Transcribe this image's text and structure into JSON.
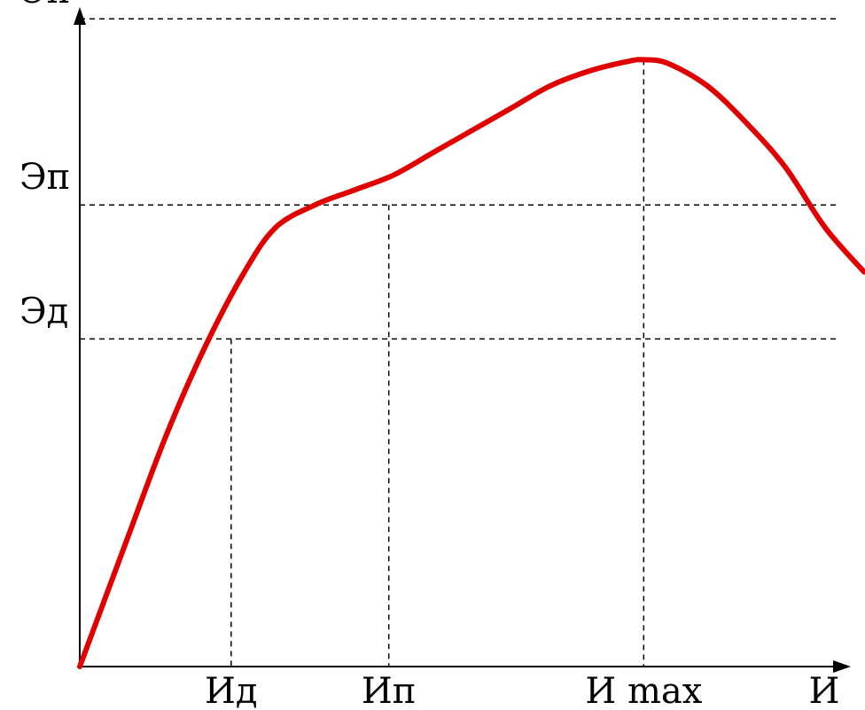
{
  "chart_data": {
    "type": "line",
    "xlabel": "И",
    "ylabel": "",
    "y_levels": [
      {
        "label": "Эн",
        "value": 0.87
      },
      {
        "label": "Эп",
        "value": 0.62
      },
      {
        "label": "Эд",
        "value": 0.44
      }
    ],
    "x_marks": [
      {
        "label": "Ид",
        "x": 0.193,
        "to_level": 2
      },
      {
        "label": "Ип",
        "x": 0.394,
        "to_level": 1
      },
      {
        "label": "И max",
        "x": 0.719,
        "to_level": -1
      }
    ],
    "xlim": [
      0,
      1.0
    ],
    "ylim": [
      0,
      1.0
    ],
    "series": [
      {
        "color": "#e00000",
        "x": [
          0,
          0.06,
          0.11,
          0.16,
          0.21,
          0.25,
          0.3,
          0.35,
          0.4,
          0.45,
          0.5,
          0.55,
          0.6,
          0.65,
          0.7,
          0.72,
          0.75,
          0.8,
          0.85,
          0.9,
          0.95,
          1.0
        ],
        "y": [
          0,
          0.17,
          0.31,
          0.43,
          0.53,
          0.59,
          0.62,
          0.64,
          0.66,
          0.69,
          0.72,
          0.75,
          0.78,
          0.8,
          0.813,
          0.815,
          0.81,
          0.78,
          0.73,
          0.67,
          0.59,
          0.53
        ]
      }
    ]
  }
}
